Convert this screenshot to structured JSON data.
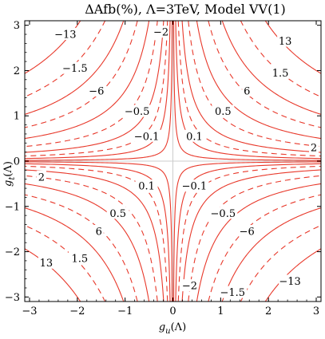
{
  "chart_data": {
    "type": "contour",
    "title": "ΔAfb(%), Λ=3TeV, Model VV(1)",
    "xlabel": "g_u(Λ)",
    "ylabel": "g_t(Λ)",
    "xlabel_parts": {
      "base": "g",
      "sub": "u",
      "suffix": "(Λ)"
    },
    "ylabel_parts": {
      "base": "g",
      "sub": "t",
      "suffix": "(Λ)"
    },
    "xlim": [
      -3.1,
      3.1
    ],
    "ylim": [
      -3.1,
      3.1
    ],
    "x_ticks": [
      -3,
      -2,
      -1,
      0,
      1,
      2,
      3
    ],
    "y_ticks": [
      -3,
      -2,
      -1,
      0,
      1,
      2,
      3
    ],
    "x_tick_labels": [
      "−3",
      "−2",
      "−1",
      "0",
      "1",
      "2",
      "3"
    ],
    "y_tick_labels": [
      "−3",
      "−2",
      "−1",
      "0",
      "1",
      "2",
      "3"
    ],
    "line_color": "#e8392b",
    "zero_line_color": "#cccccc",
    "function": "ΔAfb ∝ g_u · g_t (hyperbolic contours)",
    "levels": [
      {
        "k": 0.05,
        "style": "solid"
      },
      {
        "k": 0.18,
        "style": "solid"
      },
      {
        "k": 0.35,
        "style": "dashed"
      },
      {
        "k": 0.6,
        "style": "solid"
      },
      {
        "k": 1.0,
        "style": "dashed"
      },
      {
        "k": 1.55,
        "style": "solid"
      },
      {
        "k": 2.3,
        "style": "dashed"
      },
      {
        "k": 3.2,
        "style": "solid"
      },
      {
        "k": 4.4,
        "style": "dashed"
      },
      {
        "k": 6.0,
        "style": "solid"
      }
    ],
    "contour_labels": [
      {
        "text": "−13",
        "x": -2.25,
        "y": 2.8
      },
      {
        "text": "−1.5",
        "x": -2.05,
        "y": 2.05
      },
      {
        "text": "−6",
        "x": -1.6,
        "y": 1.55
      },
      {
        "text": "−0.5",
        "x": -0.75,
        "y": 1.1
      },
      {
        "text": "−0.1",
        "x": -0.55,
        "y": 0.55
      },
      {
        "text": "−2",
        "x": -0.25,
        "y": 2.85
      },
      {
        "text": "13",
        "x": 2.35,
        "y": 2.65
      },
      {
        "text": "1.5",
        "x": 2.25,
        "y": 1.95
      },
      {
        "text": "6",
        "x": 1.55,
        "y": 1.55
      },
      {
        "text": "0.5",
        "x": 1.05,
        "y": 1.1
      },
      {
        "text": "0.1",
        "x": 0.45,
        "y": 0.55
      },
      {
        "text": "2",
        "x": 2.95,
        "y": 0.3
      },
      {
        "text": "2",
        "x": -2.75,
        "y": -0.35
      },
      {
        "text": "0.1",
        "x": -0.55,
        "y": -0.55
      },
      {
        "text": "−0.1",
        "x": 0.45,
        "y": -0.55
      },
      {
        "text": "0.5",
        "x": -1.15,
        "y": -1.15
      },
      {
        "text": "−0.5",
        "x": 1.05,
        "y": -1.15
      },
      {
        "text": "6",
        "x": -1.55,
        "y": -1.55
      },
      {
        "text": "−6",
        "x": 1.55,
        "y": -1.55
      },
      {
        "text": "1.5",
        "x": -1.95,
        "y": -2.15
      },
      {
        "text": "13",
        "x": -2.65,
        "y": -2.25
      },
      {
        "text": "−2",
        "x": 0.35,
        "y": -2.75
      },
      {
        "text": "−1.5",
        "x": 1.25,
        "y": -2.9
      },
      {
        "text": "−13",
        "x": 2.45,
        "y": -2.65
      }
    ]
  }
}
